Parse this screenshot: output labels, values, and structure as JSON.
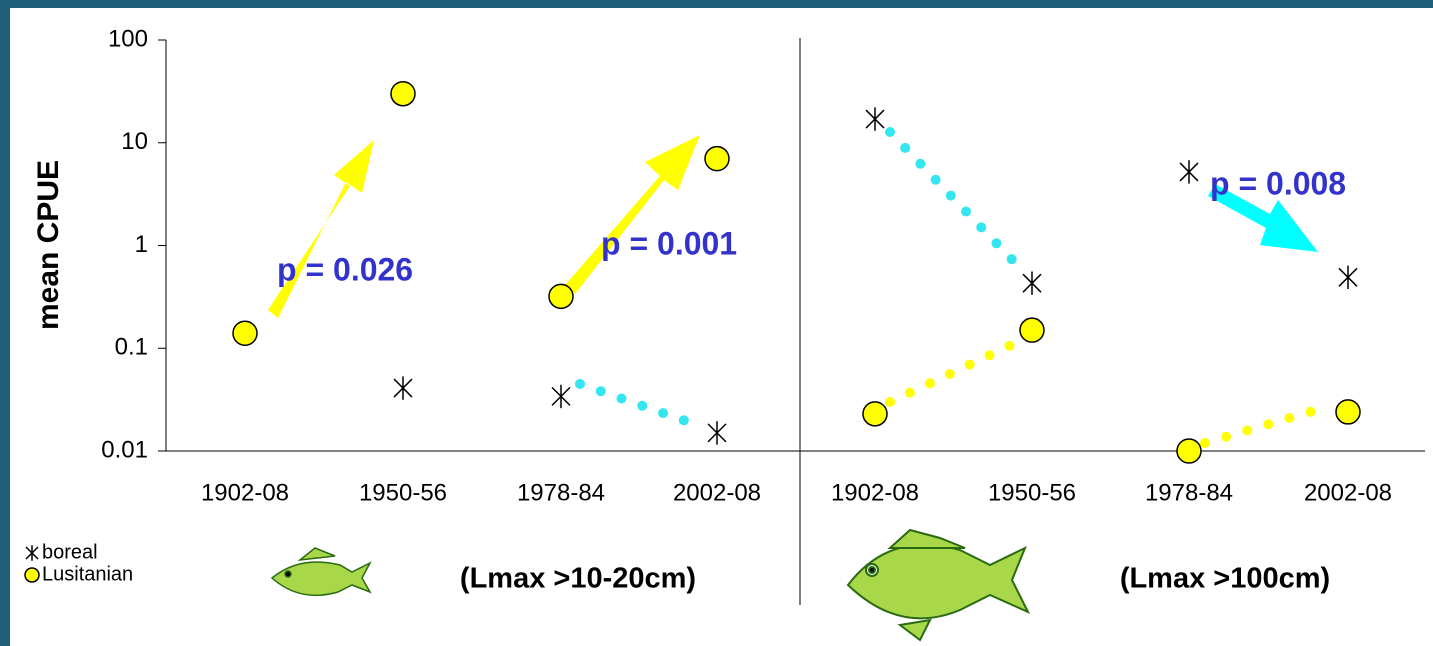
{
  "chart_data": {
    "type": "scatter",
    "y_label": "mean CPUE",
    "categories": [
      "1902-08",
      "1950-56",
      "1978-84",
      "2002-08",
      "1902-08",
      "1950-56",
      "1978-84",
      "2002-08"
    ],
    "group_labels": [
      "(Lmax >10-20cm)",
      "(Lmax >100cm)"
    ],
    "series": [
      {
        "name": "boreal",
        "color": "#000000",
        "marker": "star",
        "values": [
          null,
          0.041,
          0.034,
          0.015,
          17,
          0.43,
          5.2,
          0.49
        ]
      },
      {
        "name": "Lusitanian",
        "color": "#ffff00",
        "marker": "circle",
        "values": [
          0.14,
          30,
          0.32,
          7,
          0.023,
          0.15,
          0.01,
          0.024
        ]
      }
    ],
    "annotations": [
      "p = 0.026",
      "p = 0.001",
      "p = 0.008"
    ],
    "log_scale": true,
    "ylim": [
      0.01,
      100
    ],
    "yticks": [
      0.01,
      0.1,
      1,
      10,
      100
    ]
  }
}
